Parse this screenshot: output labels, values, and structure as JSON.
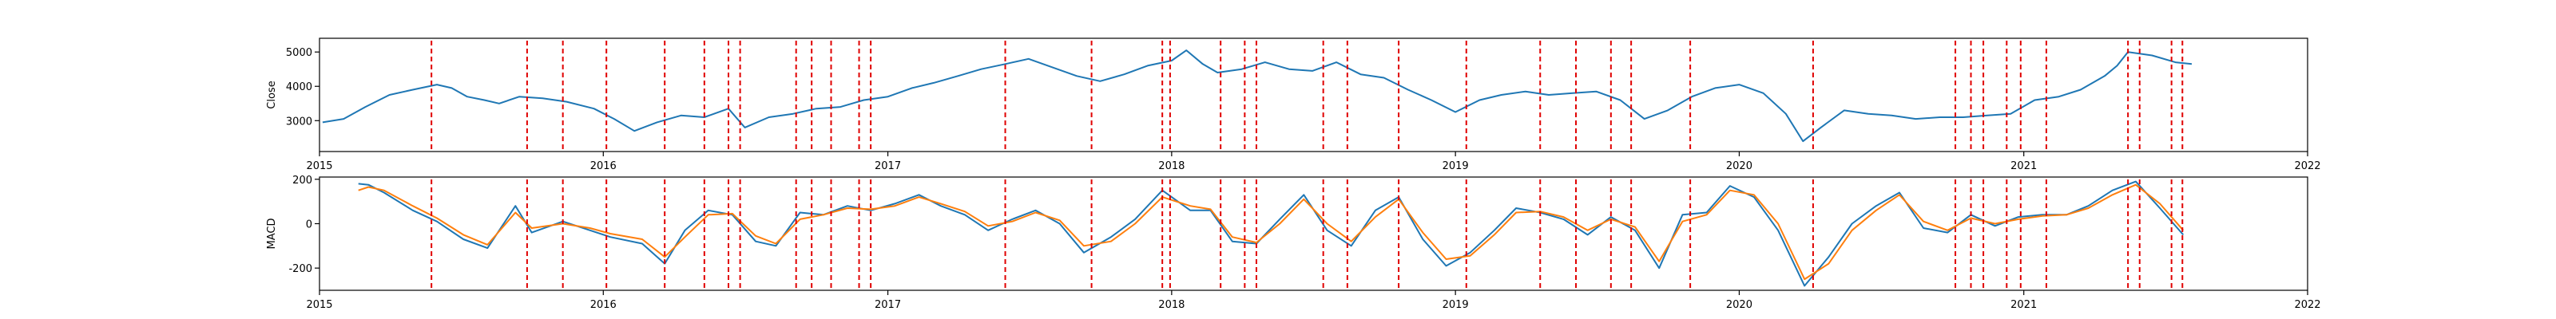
{
  "chart_data": [
    {
      "type": "line",
      "title": "",
      "xlabel": "",
      "ylabel": "Close",
      "xlim": [
        "2015-01-01",
        "2022-01-01"
      ],
      "ylim": [
        2100,
        5400
      ],
      "x_ticks": [
        "2015",
        "2016",
        "2017",
        "2018",
        "2019",
        "2020",
        "2021",
        "2022"
      ],
      "y_ticks": [
        3000,
        4000,
        5000
      ],
      "grid": false,
      "series": [
        {
          "color": "#1f77b4",
          "x": [
            "2015-01-05",
            "2015-02-01",
            "2015-03-01",
            "2015-04-01",
            "2015-05-01",
            "2015-06-01",
            "2015-06-20",
            "2015-07-10",
            "2015-08-01",
            "2015-08-20",
            "2015-09-15",
            "2015-10-15",
            "2015-11-15",
            "2015-12-20",
            "2016-01-15",
            "2016-02-10",
            "2016-03-10",
            "2016-04-10",
            "2016-05-10",
            "2016-06-10",
            "2016-07-01",
            "2016-08-01",
            "2016-09-01",
            "2016-10-01",
            "2016-11-01",
            "2016-12-01",
            "2017-01-01",
            "2017-02-01",
            "2017-03-01",
            "2017-04-01",
            "2017-05-01",
            "2017-06-01",
            "2017-07-01",
            "2017-08-01",
            "2017-09-01",
            "2017-10-01",
            "2017-11-01",
            "2017-12-01",
            "2018-01-01",
            "2018-01-20",
            "2018-02-10",
            "2018-03-01",
            "2018-04-01",
            "2018-05-01",
            "2018-06-01",
            "2018-07-01",
            "2018-08-01",
            "2018-09-01",
            "2018-10-01",
            "2018-11-01",
            "2018-12-01",
            "2019-01-01",
            "2019-02-01",
            "2019-03-01",
            "2019-04-01",
            "2019-05-01",
            "2019-06-01",
            "2019-07-01",
            "2019-08-01",
            "2019-09-01",
            "2019-10-01",
            "2019-11-01",
            "2019-12-01",
            "2020-01-01",
            "2020-02-01",
            "2020-03-01",
            "2020-03-23",
            "2020-04-15",
            "2020-05-15",
            "2020-06-15",
            "2020-07-15",
            "2020-08-15",
            "2020-09-15",
            "2020-10-15",
            "2020-11-15",
            "2020-12-15",
            "2021-01-15",
            "2021-02-15",
            "2021-03-15",
            "2021-04-15",
            "2021-05-01",
            "2021-05-15",
            "2021-06-15",
            "2021-07-15",
            "2021-08-05"
          ],
          "values": [
            2950,
            3050,
            3400,
            3750,
            3900,
            4050,
            3950,
            3700,
            3600,
            3500,
            3700,
            3650,
            3550,
            3350,
            3050,
            2700,
            2950,
            3150,
            3100,
            3350,
            2800,
            3100,
            3200,
            3350,
            3400,
            3600,
            3700,
            3950,
            4100,
            4300,
            4500,
            4650,
            4800,
            4550,
            4300,
            4150,
            4350,
            4600,
            4750,
            5050,
            4650,
            4400,
            4500,
            4700,
            4500,
            4450,
            4700,
            4350,
            4250,
            3900,
            3600,
            3250,
            3600,
            3750,
            3850,
            3750,
            3800,
            3850,
            3600,
            3050,
            3300,
            3700,
            3950,
            4050,
            3800,
            3200,
            2400,
            2800,
            3300,
            3200,
            3150,
            3050,
            3100,
            3100,
            3150,
            3200,
            3600,
            3700,
            3900,
            4300,
            4600,
            5000,
            4900,
            4700,
            4650
          ]
        }
      ],
      "event_dates": [
        "2015-05-25",
        "2015-09-25",
        "2015-11-10",
        "2016-01-05",
        "2016-03-20",
        "2016-05-10",
        "2016-06-10",
        "2016-06-25",
        "2016-09-05",
        "2016-09-25",
        "2016-10-20",
        "2016-11-25",
        "2016-12-10",
        "2017-06-01",
        "2017-09-20",
        "2017-12-20",
        "2017-12-30",
        "2018-03-05",
        "2018-04-05",
        "2018-04-20",
        "2018-07-15",
        "2018-08-15",
        "2018-10-20",
        "2019-01-15",
        "2019-04-20",
        "2019-06-05",
        "2019-07-20",
        "2019-08-15",
        "2019-10-30",
        "2020-04-05",
        "2020-10-05",
        "2020-10-25",
        "2020-11-10",
        "2020-12-10",
        "2020-12-28",
        "2021-01-30",
        "2021-05-15",
        "2021-05-30",
        "2021-07-10",
        "2021-07-24"
      ]
    },
    {
      "type": "line",
      "title": "",
      "xlabel": "",
      "ylabel": "MACD",
      "xlim": [
        "2015-01-01",
        "2022-01-01"
      ],
      "ylim": [
        -300,
        210
      ],
      "x_ticks": [
        "2015",
        "2016",
        "2017",
        "2018",
        "2019",
        "2020",
        "2021",
        "2022"
      ],
      "y_ticks": [
        -200,
        0,
        200
      ],
      "grid": false,
      "series": [
        {
          "color": "#1f77b4",
          "x": [
            "2015-02-20",
            "2015-03-05",
            "2015-03-25",
            "2015-05-01",
            "2015-06-01",
            "2015-07-05",
            "2015-08-05",
            "2015-09-10",
            "2015-10-01",
            "2015-11-10",
            "2015-12-15",
            "2016-01-10",
            "2016-02-20",
            "2016-03-20",
            "2016-04-15",
            "2016-05-15",
            "2016-06-15",
            "2016-07-15",
            "2016-08-10",
            "2016-09-10",
            "2016-10-10",
            "2016-11-10",
            "2016-12-10",
            "2017-01-10",
            "2017-02-10",
            "2017-03-10",
            "2017-04-10",
            "2017-05-10",
            "2017-06-10",
            "2017-07-10",
            "2017-08-10",
            "2017-09-10",
            "2017-10-15",
            "2017-11-15",
            "2017-12-20",
            "2018-01-25",
            "2018-02-20",
            "2018-03-20",
            "2018-04-20",
            "2018-05-20",
            "2018-06-20",
            "2018-07-20",
            "2018-08-20",
            "2018-09-20",
            "2018-10-20",
            "2018-11-20",
            "2018-12-20",
            "2019-01-20",
            "2019-02-20",
            "2019-03-20",
            "2019-04-20",
            "2019-05-20",
            "2019-06-20",
            "2019-07-20",
            "2019-08-20",
            "2019-09-20",
            "2019-10-20",
            "2019-11-20",
            "2019-12-20",
            "2020-01-20",
            "2020-02-20",
            "2020-03-25",
            "2020-04-25",
            "2020-05-25",
            "2020-06-25",
            "2020-07-25",
            "2020-08-25",
            "2020-09-25",
            "2020-10-25",
            "2020-11-25",
            "2020-12-25",
            "2021-01-25",
            "2021-02-25",
            "2021-03-25",
            "2021-04-25",
            "2021-05-25",
            "2021-06-25",
            "2021-07-25"
          ],
          "values": [
            180,
            175,
            140,
            60,
            10,
            -70,
            -110,
            80,
            -40,
            10,
            -30,
            -60,
            -90,
            -180,
            -30,
            60,
            40,
            -80,
            -100,
            50,
            40,
            80,
            60,
            90,
            130,
            80,
            40,
            -30,
            20,
            60,
            0,
            -130,
            -60,
            20,
            150,
            60,
            60,
            -80,
            -90,
            20,
            130,
            -30,
            -100,
            60,
            120,
            -70,
            -190,
            -130,
            -30,
            70,
            50,
            20,
            -50,
            30,
            -30,
            -200,
            40,
            50,
            170,
            120,
            -30,
            -280,
            -150,
            0,
            80,
            140,
            -20,
            -40,
            40,
            -10,
            30,
            40,
            40,
            80,
            150,
            190,
            70,
            -50
          ]
        },
        {
          "color": "#ff7f0e",
          "x": [
            "2015-02-20",
            "2015-03-05",
            "2015-03-25",
            "2015-05-01",
            "2015-06-01",
            "2015-07-05",
            "2015-08-05",
            "2015-09-10",
            "2015-10-01",
            "2015-11-10",
            "2015-12-15",
            "2016-01-10",
            "2016-02-20",
            "2016-03-20",
            "2016-04-15",
            "2016-05-15",
            "2016-06-15",
            "2016-07-15",
            "2016-08-10",
            "2016-09-10",
            "2016-10-10",
            "2016-11-10",
            "2016-12-10",
            "2017-01-10",
            "2017-02-10",
            "2017-03-10",
            "2017-04-10",
            "2017-05-10",
            "2017-06-10",
            "2017-07-10",
            "2017-08-10",
            "2017-09-10",
            "2017-10-15",
            "2017-11-15",
            "2017-12-20",
            "2018-01-25",
            "2018-02-20",
            "2018-03-20",
            "2018-04-20",
            "2018-05-20",
            "2018-06-20",
            "2018-07-20",
            "2018-08-20",
            "2018-09-20",
            "2018-10-20",
            "2018-11-20",
            "2018-12-20",
            "2019-01-20",
            "2019-02-20",
            "2019-03-20",
            "2019-04-20",
            "2019-05-20",
            "2019-06-20",
            "2019-07-20",
            "2019-08-20",
            "2019-09-20",
            "2019-10-20",
            "2019-11-20",
            "2019-12-20",
            "2020-01-20",
            "2020-02-20",
            "2020-03-25",
            "2020-04-25",
            "2020-05-25",
            "2020-06-25",
            "2020-07-25",
            "2020-08-25",
            "2020-09-25",
            "2020-10-25",
            "2020-11-25",
            "2020-12-25",
            "2021-01-25",
            "2021-02-25",
            "2021-03-25",
            "2021-04-25",
            "2021-05-25",
            "2021-06-25",
            "2021-07-25"
          ],
          "values": [
            150,
            165,
            150,
            80,
            25,
            -50,
            -95,
            50,
            -20,
            0,
            -20,
            -45,
            -70,
            -150,
            -60,
            40,
            45,
            -55,
            -90,
            20,
            40,
            70,
            65,
            80,
            120,
            90,
            55,
            -10,
            10,
            50,
            15,
            -100,
            -80,
            0,
            120,
            80,
            65,
            -60,
            -85,
            0,
            110,
            0,
            -80,
            30,
            110,
            -40,
            -160,
            -145,
            -50,
            50,
            55,
            30,
            -30,
            20,
            -15,
            -170,
            10,
            40,
            150,
            130,
            0,
            -250,
            -180,
            -30,
            60,
            130,
            10,
            -30,
            25,
            0,
            20,
            35,
            40,
            70,
            130,
            175,
            90,
            -30
          ]
        }
      ],
      "event_dates": [
        "2015-05-25",
        "2015-09-25",
        "2015-11-10",
        "2016-01-05",
        "2016-03-20",
        "2016-05-10",
        "2016-06-10",
        "2016-06-25",
        "2016-09-05",
        "2016-09-25",
        "2016-10-20",
        "2016-11-25",
        "2016-12-10",
        "2017-06-01",
        "2017-09-20",
        "2017-12-20",
        "2017-12-30",
        "2018-03-05",
        "2018-04-05",
        "2018-04-20",
        "2018-07-15",
        "2018-08-15",
        "2018-10-20",
        "2019-01-15",
        "2019-04-20",
        "2019-06-05",
        "2019-07-20",
        "2019-08-15",
        "2019-10-30",
        "2020-04-05",
        "2020-10-05",
        "2020-10-25",
        "2020-11-10",
        "2020-12-10",
        "2020-12-28",
        "2021-01-30",
        "2021-05-15",
        "2021-05-30",
        "2021-07-10",
        "2021-07-24"
      ]
    }
  ]
}
